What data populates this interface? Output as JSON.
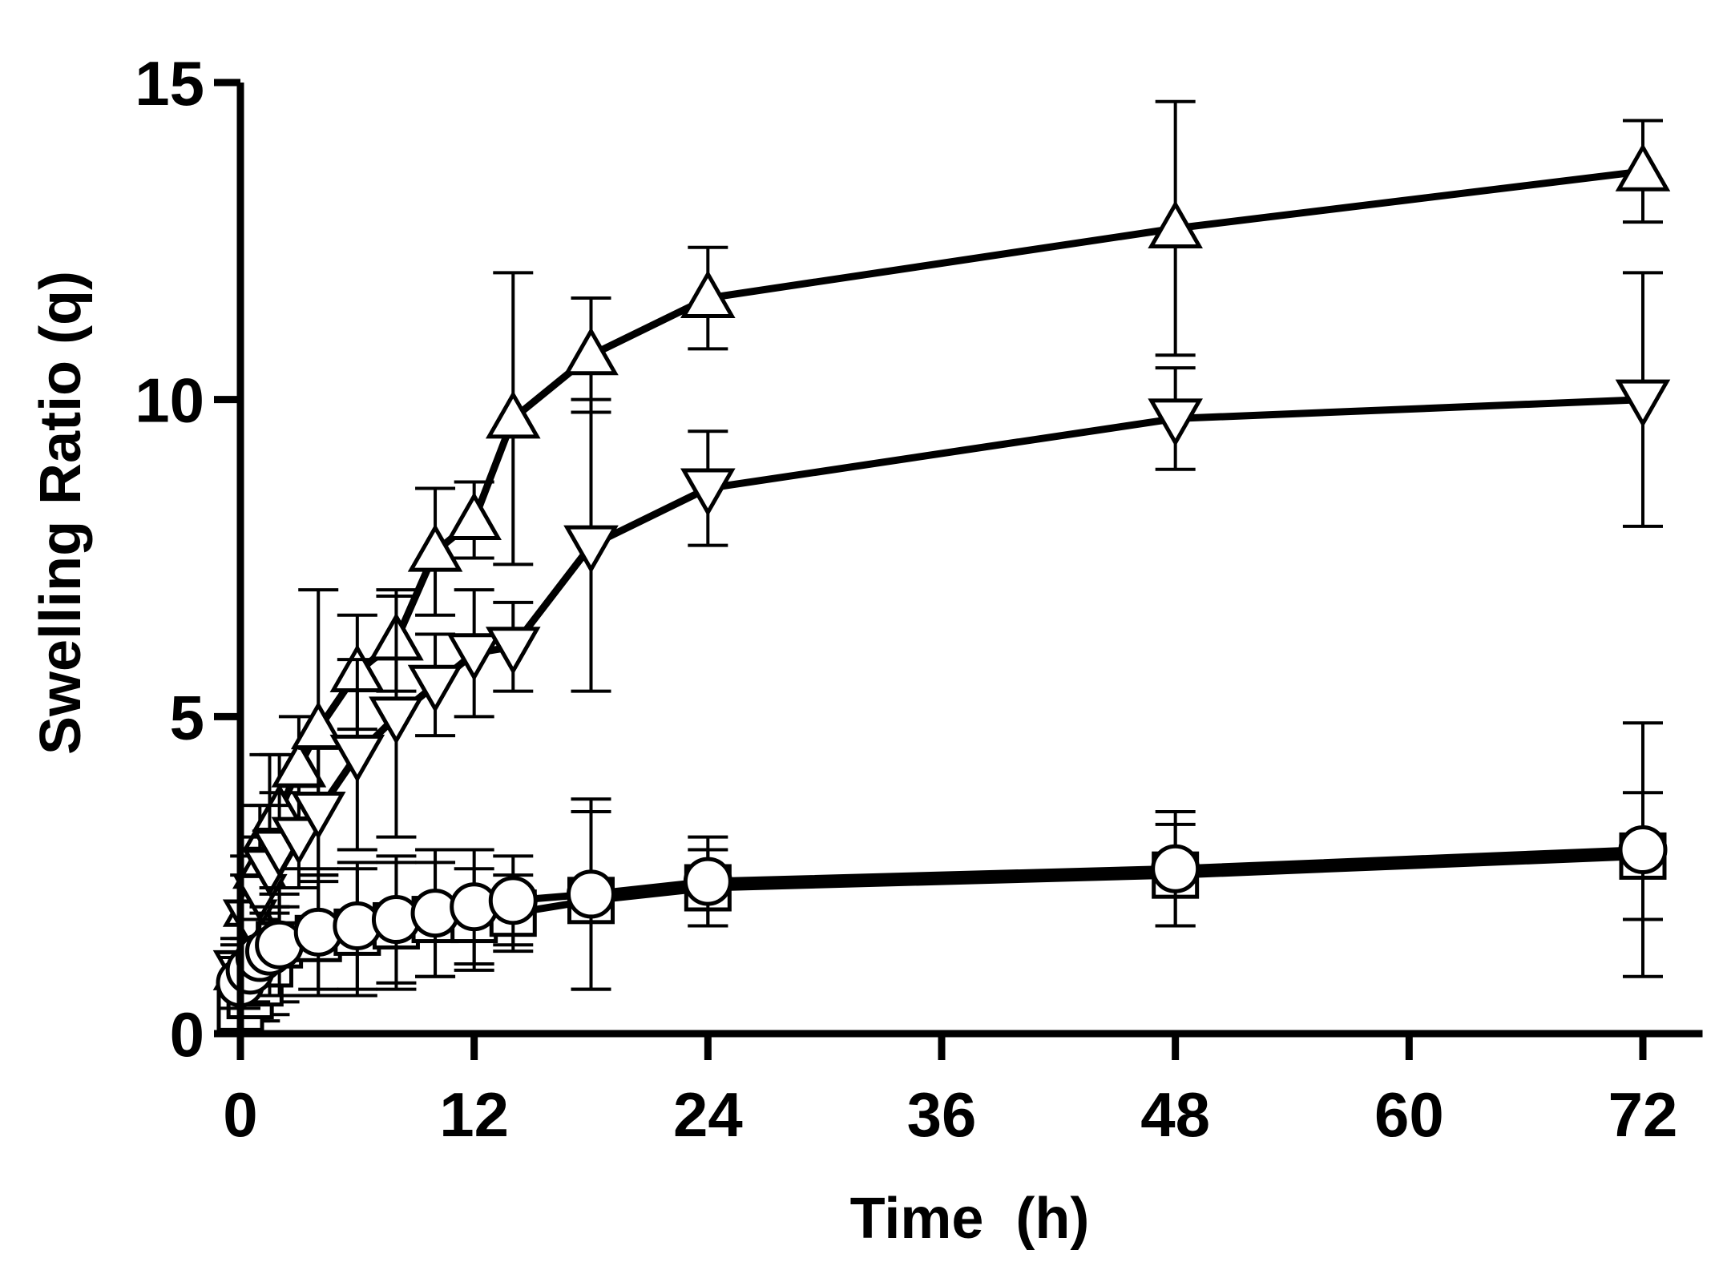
{
  "chart_data": {
    "type": "line",
    "title": "",
    "xlabel": "Time  (h)",
    "ylabel": "Swelling Ratio (q)",
    "xlim": [
      0,
      74
    ],
    "ylim": [
      0,
      15
    ],
    "xticks": [
      0,
      12,
      24,
      36,
      48,
      60,
      72
    ],
    "yticks": [
      0,
      5,
      10,
      15
    ],
    "xtick_labels": [
      "0",
      "12",
      "24",
      "36",
      "48",
      "60",
      "72"
    ],
    "ytick_labels": [
      "0",
      "5",
      "10",
      "15"
    ],
    "grid": false,
    "legend": "none",
    "colors": {
      "line": "#000000",
      "marker_fill": "#ffffff"
    },
    "series": [
      {
        "name": "triangle-up",
        "marker": "triangle-up",
        "x": [
          0,
          0.5,
          1,
          1.5,
          2,
          3,
          4,
          6,
          8,
          10,
          12,
          14,
          18,
          24,
          48,
          72
        ],
        "y": [
          1.0,
          2.0,
          2.6,
          3.2,
          3.5,
          4.2,
          4.8,
          5.7,
          6.2,
          7.6,
          8.1,
          9.7,
          10.7,
          11.6,
          12.7,
          13.6
        ],
        "err": [
          0.5,
          0.8,
          1.0,
          1.2,
          0.9,
          0.8,
          2.2,
          0.9,
          0.8,
          1.0,
          0.6,
          2.3,
          0.9,
          0.8,
          2.0,
          0.8
        ]
      },
      {
        "name": "triangle-down",
        "marker": "triangle-down",
        "x": [
          0,
          0.5,
          1,
          1.5,
          2,
          3,
          4,
          6,
          8,
          10,
          12,
          14,
          18,
          24,
          48,
          72
        ],
        "y": [
          1.0,
          1.8,
          2.2,
          2.6,
          2.9,
          3.1,
          3.5,
          4.4,
          5.0,
          5.5,
          6.0,
          6.1,
          7.7,
          8.6,
          9.7,
          10.0
        ],
        "err": [
          0.4,
          0.7,
          0.9,
          1.0,
          0.9,
          0.8,
          1.0,
          1.5,
          1.9,
          0.8,
          1.0,
          0.7,
          2.3,
          0.9,
          0.8,
          2.0
        ]
      },
      {
        "name": "square",
        "marker": "square",
        "x": [
          0,
          0.5,
          1,
          1.5,
          2,
          4,
          6,
          8,
          10,
          12,
          14,
          18,
          24,
          48,
          72
        ],
        "y": [
          0.4,
          0.6,
          0.8,
          1.1,
          1.4,
          1.5,
          1.6,
          1.7,
          1.8,
          1.8,
          1.9,
          2.1,
          2.3,
          2.5,
          2.8
        ],
        "err": [
          0.3,
          0.4,
          0.6,
          0.8,
          0.9,
          0.9,
          1.0,
          1.0,
          0.9,
          0.8,
          0.6,
          1.4,
          0.6,
          0.8,
          1.0
        ]
      },
      {
        "name": "circle",
        "marker": "circle",
        "x": [
          0,
          0.5,
          1,
          1.5,
          2,
          4,
          6,
          8,
          10,
          12,
          14,
          18,
          24,
          48,
          72
        ],
        "y": [
          0.8,
          1.0,
          1.2,
          1.3,
          1.4,
          1.6,
          1.7,
          1.8,
          1.9,
          2.0,
          2.1,
          2.2,
          2.4,
          2.6,
          2.9
        ],
        "err": [
          0.4,
          0.5,
          0.6,
          0.7,
          0.8,
          0.9,
          1.0,
          1.0,
          1.0,
          0.9,
          0.7,
          1.5,
          0.7,
          0.9,
          2.0
        ]
      }
    ]
  }
}
